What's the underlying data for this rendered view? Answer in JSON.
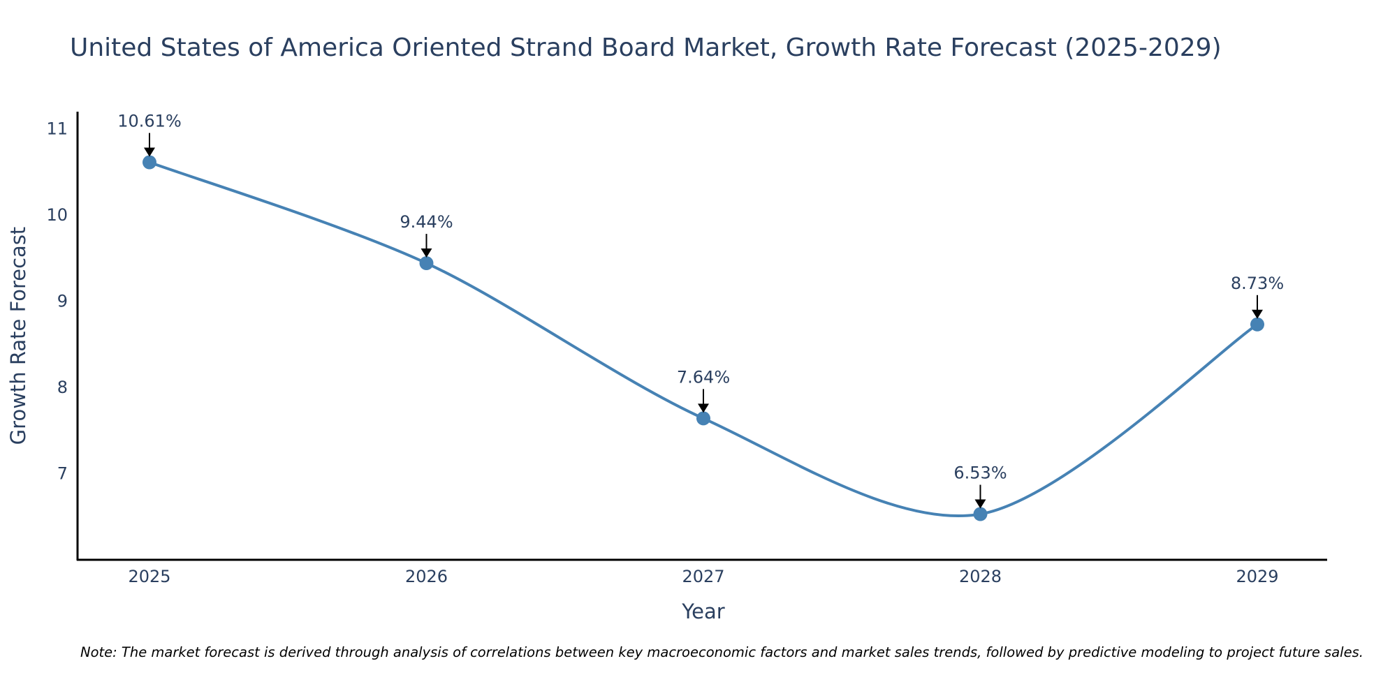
{
  "chart_data": {
    "type": "line",
    "title": "United States of America Oriented Strand Board Market, Growth Rate Forecast (2025-2029)",
    "xlabel": "Year",
    "ylabel": "Growth Rate Forecast",
    "categories": [
      "2025",
      "2026",
      "2027",
      "2028",
      "2029"
    ],
    "series": [
      {
        "name": "Growth Rate Forecast",
        "values": [
          10.61,
          9.44,
          7.64,
          6.53,
          8.73
        ],
        "labels": [
          "10.61%",
          "9.44%",
          "7.64%",
          "6.53%",
          "8.73%"
        ],
        "color": "#4682b4"
      }
    ],
    "ylim": [
      6,
      11.1
    ],
    "yticks": [
      "7",
      "8",
      "9",
      "10",
      "11"
    ],
    "grid": false,
    "line_shape": "spline",
    "note": "Note: The market forecast is derived through analysis of correlations between key macroeconomic factors and market sales trends, followed by predictive modeling to project future sales."
  }
}
